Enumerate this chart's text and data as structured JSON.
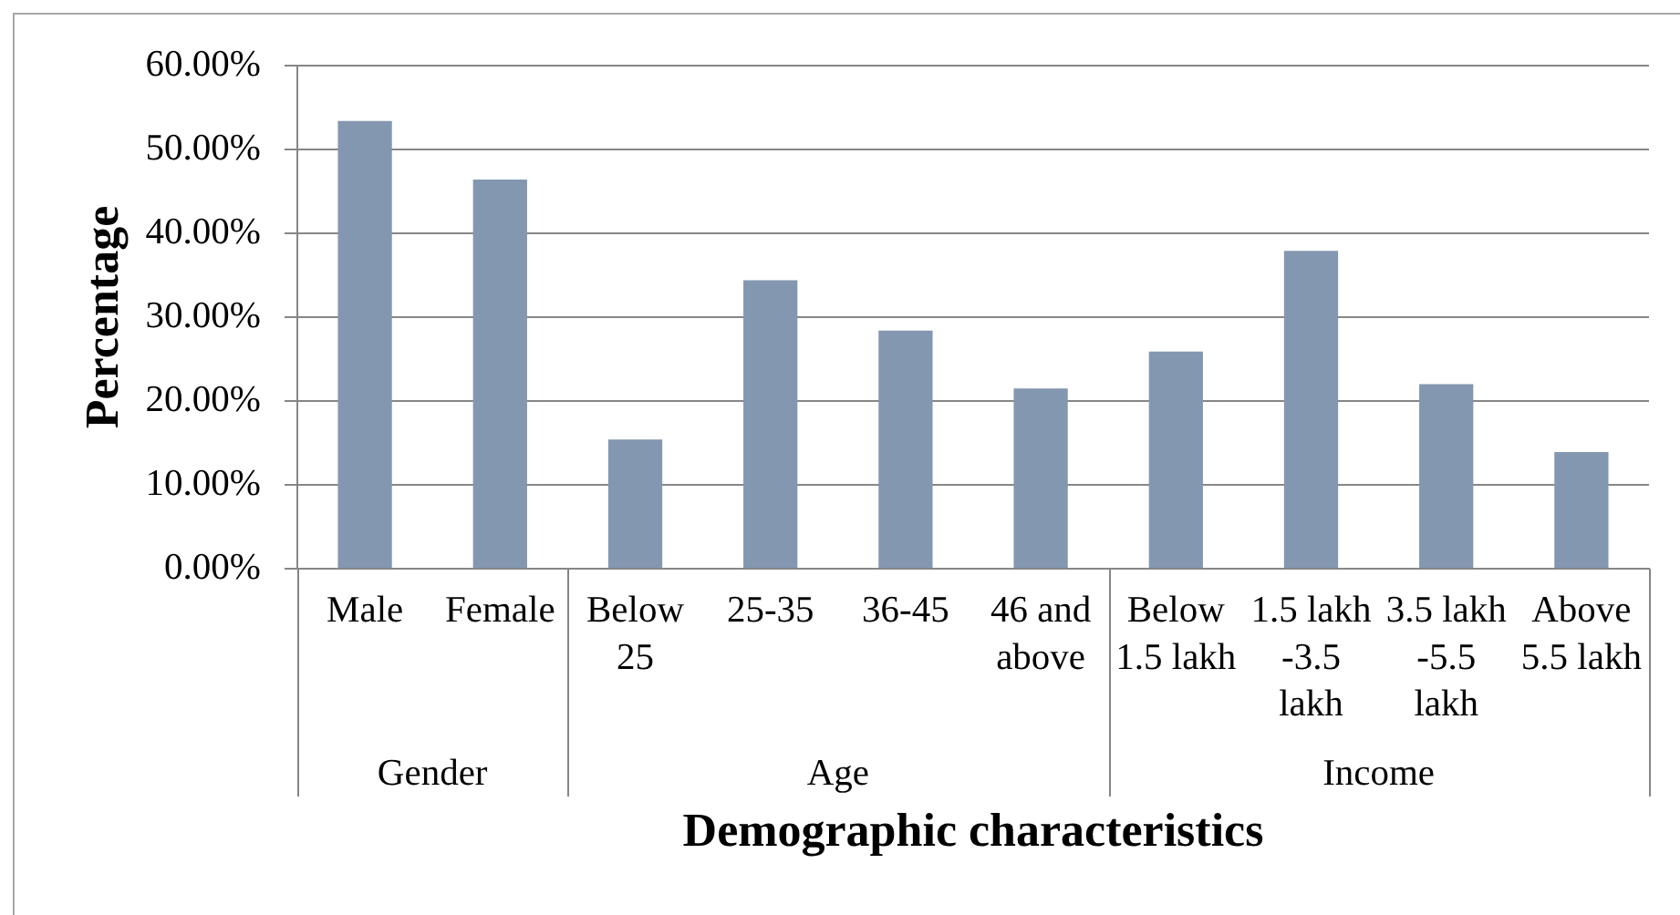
{
  "chart_data": {
    "type": "bar",
    "xlabel": "Demographic characteristics",
    "ylabel": "Percentage",
    "categories": [
      "Male",
      "Female",
      "Below 25",
      "25-35",
      "36-45",
      "46 and above",
      "Below 1.5 lakh",
      "1.5 lakh -3.5 lakh",
      "3.5 lakh -5.5 lakh",
      "Above 5.5 lakh"
    ],
    "values": [
      53.4,
      46.4,
      15.4,
      34.4,
      28.4,
      21.5,
      25.9,
      37.9,
      22.0,
      13.9
    ],
    "color": "#8497b0",
    "ylim": [
      0,
      60
    ],
    "yticks": [
      {
        "value": 0,
        "label": "0.00%"
      },
      {
        "value": 10,
        "label": "10.00%"
      },
      {
        "value": 20,
        "label": "20.00%"
      },
      {
        "value": 30,
        "label": "30.00%"
      },
      {
        "value": 40,
        "label": "40.00%"
      },
      {
        "value": 50,
        "label": "50.00%"
      },
      {
        "value": 60,
        "label": "60.00%"
      }
    ],
    "grid": "y",
    "annotations": [
      "Gender",
      "Age",
      "Income"
    ]
  }
}
